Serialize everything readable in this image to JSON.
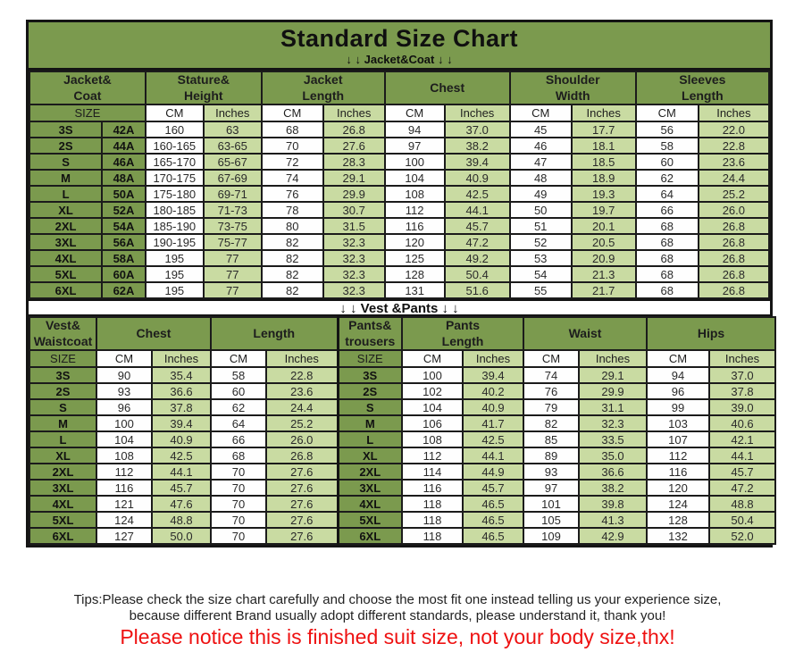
{
  "title": "Standard Size Chart",
  "jacket_section_label": "↓ ↓  Jacket&Coat ↓ ↓",
  "vest_section_label": "↓ ↓  Vest &Pants ↓ ↓",
  "colors": {
    "olive_green": "#7b9a4e",
    "light_green": "#c9dba2",
    "border_black": "#141414",
    "notice_red": "#ee1111"
  },
  "jacket_table": {
    "groups": [
      {
        "label": "Jacket&\nCoat",
        "span": 2
      },
      {
        "label": "Stature&\nHeight",
        "span": 2
      },
      {
        "label": "Jacket\nLength",
        "span": 2
      },
      {
        "label": "Chest",
        "span": 2
      },
      {
        "label": "Shoulder\nWidth",
        "span": 2
      },
      {
        "label": "Sleeves\nLength",
        "span": 2
      }
    ],
    "subheaders": [
      {
        "label": "SIZE",
        "span": 2
      },
      {
        "label": "CM"
      },
      {
        "label": "Inches"
      },
      {
        "label": "CM"
      },
      {
        "label": "Inches"
      },
      {
        "label": "CM"
      },
      {
        "label": "Inches"
      },
      {
        "label": "CM"
      },
      {
        "label": "Inches"
      },
      {
        "label": "CM"
      },
      {
        "label": "Inches"
      }
    ],
    "rows": [
      [
        "3S",
        "42A",
        "160",
        "63",
        "68",
        "26.8",
        "94",
        "37.0",
        "45",
        "17.7",
        "56",
        "22.0"
      ],
      [
        "2S",
        "44A",
        "160-165",
        "63-65",
        "70",
        "27.6",
        "97",
        "38.2",
        "46",
        "18.1",
        "58",
        "22.8"
      ],
      [
        "S",
        "46A",
        "165-170",
        "65-67",
        "72",
        "28.3",
        "100",
        "39.4",
        "47",
        "18.5",
        "60",
        "23.6"
      ],
      [
        "M",
        "48A",
        "170-175",
        "67-69",
        "74",
        "29.1",
        "104",
        "40.9",
        "48",
        "18.9",
        "62",
        "24.4"
      ],
      [
        "L",
        "50A",
        "175-180",
        "69-71",
        "76",
        "29.9",
        "108",
        "42.5",
        "49",
        "19.3",
        "64",
        "25.2"
      ],
      [
        "XL",
        "52A",
        "180-185",
        "71-73",
        "78",
        "30.7",
        "112",
        "44.1",
        "50",
        "19.7",
        "66",
        "26.0"
      ],
      [
        "2XL",
        "54A",
        "185-190",
        "73-75",
        "80",
        "31.5",
        "116",
        "45.7",
        "51",
        "20.1",
        "68",
        "26.8"
      ],
      [
        "3XL",
        "56A",
        "190-195",
        "75-77",
        "82",
        "32.3",
        "120",
        "47.2",
        "52",
        "20.5",
        "68",
        "26.8"
      ],
      [
        "4XL",
        "58A",
        "195",
        "77",
        "82",
        "32.3",
        "125",
        "49.2",
        "53",
        "20.9",
        "68",
        "26.8"
      ],
      [
        "5XL",
        "60A",
        "195",
        "77",
        "82",
        "32.3",
        "128",
        "50.4",
        "54",
        "21.3",
        "68",
        "26.8"
      ],
      [
        "6XL",
        "62A",
        "195",
        "77",
        "82",
        "32.3",
        "131",
        "51.6",
        "55",
        "21.7",
        "68",
        "26.8"
      ]
    ]
  },
  "vest_table": {
    "groups": [
      {
        "label": "Vest&\nWaistcoat",
        "span": 1
      },
      {
        "label": "Chest",
        "span": 2
      },
      {
        "label": "Length",
        "span": 2
      },
      {
        "label": "Pants&\ntrousers",
        "span": 1
      },
      {
        "label": "Pants\nLength",
        "span": 2
      },
      {
        "label": "Waist",
        "span": 2
      },
      {
        "label": "Hips",
        "span": 2
      }
    ],
    "subheaders": [
      {
        "label": "SIZE"
      },
      {
        "label": "CM"
      },
      {
        "label": "Inches"
      },
      {
        "label": "CM"
      },
      {
        "label": "Inches"
      },
      {
        "label": "SIZE"
      },
      {
        "label": "CM"
      },
      {
        "label": "Inches"
      },
      {
        "label": "CM"
      },
      {
        "label": "Inches"
      },
      {
        "label": "CM"
      },
      {
        "label": "Inches"
      }
    ],
    "rows": [
      [
        "3S",
        "90",
        "35.4",
        "58",
        "22.8",
        "3S",
        "100",
        "39.4",
        "74",
        "29.1",
        "94",
        "37.0"
      ],
      [
        "2S",
        "93",
        "36.6",
        "60",
        "23.6",
        "2S",
        "102",
        "40.2",
        "76",
        "29.9",
        "96",
        "37.8"
      ],
      [
        "S",
        "96",
        "37.8",
        "62",
        "24.4",
        "S",
        "104",
        "40.9",
        "79",
        "31.1",
        "99",
        "39.0"
      ],
      [
        "M",
        "100",
        "39.4",
        "64",
        "25.2",
        "M",
        "106",
        "41.7",
        "82",
        "32.3",
        "103",
        "40.6"
      ],
      [
        "L",
        "104",
        "40.9",
        "66",
        "26.0",
        "L",
        "108",
        "42.5",
        "85",
        "33.5",
        "107",
        "42.1"
      ],
      [
        "XL",
        "108",
        "42.5",
        "68",
        "26.8",
        "XL",
        "112",
        "44.1",
        "89",
        "35.0",
        "112",
        "44.1"
      ],
      [
        "2XL",
        "112",
        "44.1",
        "70",
        "27.6",
        "2XL",
        "114",
        "44.9",
        "93",
        "36.6",
        "116",
        "45.7"
      ],
      [
        "3XL",
        "116",
        "45.7",
        "70",
        "27.6",
        "3XL",
        "116",
        "45.7",
        "97",
        "38.2",
        "120",
        "47.2"
      ],
      [
        "4XL",
        "121",
        "47.6",
        "70",
        "27.6",
        "4XL",
        "118",
        "46.5",
        "101",
        "39.8",
        "124",
        "48.8"
      ],
      [
        "5XL",
        "124",
        "48.8",
        "70",
        "27.6",
        "5XL",
        "118",
        "46.5",
        "105",
        "41.3",
        "128",
        "50.4"
      ],
      [
        "6XL",
        "127",
        "50.0",
        "70",
        "27.6",
        "6XL",
        "118",
        "46.5",
        "109",
        "42.9",
        "132",
        "52.0"
      ]
    ]
  },
  "tips": {
    "line1": "Tips:Please check the size chart carefully and choose the most fit one instead telling us your experience size,",
    "line2": "because different Brand usually adopt different standards, please understand it, thank you!",
    "notice": "Please notice this is finished suit size, not your body size,thx!"
  }
}
